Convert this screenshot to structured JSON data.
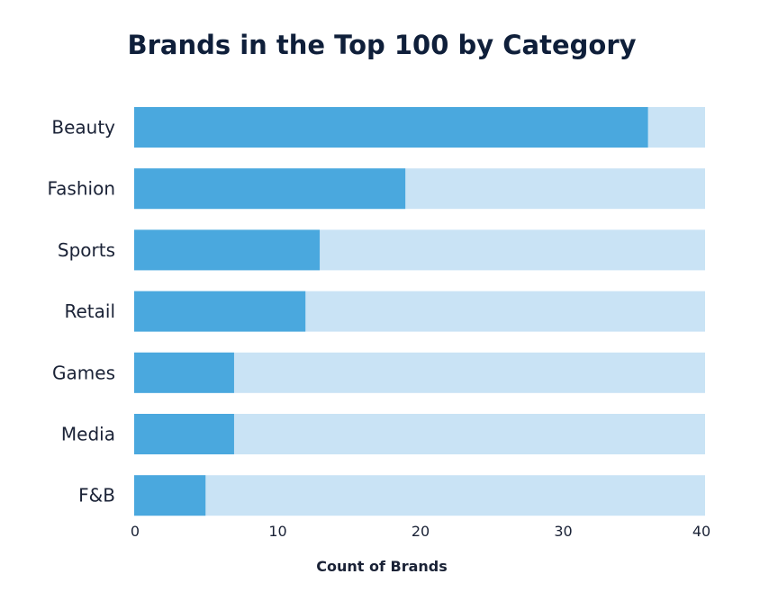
{
  "chart_data": {
    "type": "bar",
    "orientation": "horizontal",
    "title": "Brands in the Top 100 by Category",
    "xlabel": "Count of Brands",
    "ylabel": "",
    "categories": [
      "Beauty",
      "Fashion",
      "Sports",
      "Retail",
      "Games",
      "Media",
      "F&B"
    ],
    "values": [
      36,
      19,
      13,
      12,
      7,
      7,
      5
    ],
    "xlim": [
      0,
      40
    ],
    "xticks": [
      "0",
      "10",
      "20",
      "30",
      "40"
    ],
    "grid": false,
    "legend": "none",
    "colors": {
      "bar": "#4aa8de",
      "track": "#c9e3f5",
      "text": "#1a2236",
      "title": "#0f1f3a"
    }
  }
}
